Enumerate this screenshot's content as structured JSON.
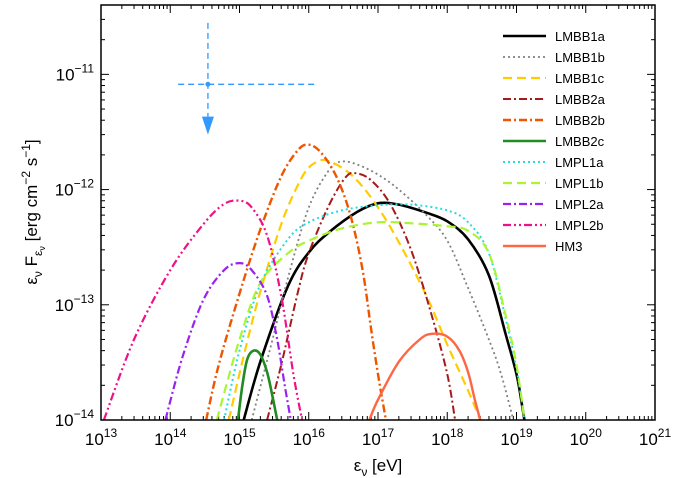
{
  "chart_data": {
    "type": "line",
    "title": "",
    "xscale": "log",
    "yscale": "log",
    "xlim": [
      10000000000000.0,
      1e+21
    ],
    "ylim": [
      1e-14,
      4e-11
    ],
    "xlabel": {
      "main": "ε",
      "sub": "ν",
      "rest": " [eV]"
    },
    "ylabel": {
      "a": "ε",
      "a_sub": "ν",
      "b": " F",
      "b_sub": "ε",
      "b_subsub": "ν",
      "c": " [erg cm",
      "c_sup": "−2",
      "d": " s",
      "d_sup": "−1",
      "e": "]"
    },
    "xticks": [
      {
        "value": 10000000000000.0,
        "base": "10",
        "exp": "13"
      },
      {
        "value": 100000000000000.0,
        "base": "10",
        "exp": "14"
      },
      {
        "value": 1000000000000000.0,
        "base": "10",
        "exp": "15"
      },
      {
        "value": 1e+16,
        "base": "10",
        "exp": "16"
      },
      {
        "value": 1e+17,
        "base": "10",
        "exp": "17"
      },
      {
        "value": 1e+18,
        "base": "10",
        "exp": "18"
      },
      {
        "value": 1e+19,
        "base": "10",
        "exp": "19"
      },
      {
        "value": 1e+20,
        "base": "10",
        "exp": "20"
      },
      {
        "value": 1e+21,
        "base": "10",
        "exp": "21"
      }
    ],
    "yticks": [
      {
        "value": 1e-14,
        "base": "10",
        "exp": "−14"
      },
      {
        "value": 1e-13,
        "base": "10",
        "exp": "−13"
      },
      {
        "value": 1e-12,
        "base": "10",
        "exp": "−12"
      },
      {
        "value": 1e-11,
        "base": "10",
        "exp": "−11"
      }
    ],
    "grid": false,
    "legend_position": "top-right",
    "upper_limit": {
      "color": "#3399ff",
      "x": 350000000000000.0,
      "y": 8.2e-12,
      "x_range": [
        130000000000000.0,
        1.2e+16
      ],
      "y_top": 2.8e-11,
      "arrow_to": 3e-12
    },
    "series": [
      {
        "name": "LMBB1a",
        "color": "#000000",
        "dash": "",
        "width": 2.6,
        "points": [
          [
            1150000000000000.0,
            1e-14
          ],
          [
            2000000000000000.0,
            3.2e-14
          ],
          [
            5000000000000000.0,
            1.45e-13
          ],
          [
            1e+16,
            2.85e-13
          ],
          [
            2e+16,
            4.3e-13
          ],
          [
            5e+16,
            6.4e-13
          ],
          [
            1e+17,
            7.6e-13
          ],
          [
            2e+17,
            7.4e-13
          ],
          [
            5e+17,
            6.3e-13
          ],
          [
            1e+18,
            5.3e-13
          ],
          [
            2e+18,
            3.7e-13
          ],
          [
            4e+18,
            1.8e-13
          ],
          [
            7e+18,
            5.5e-14
          ],
          [
            1e+19,
            2.5e-14
          ],
          [
            1.2e+19,
            1.35e-14
          ],
          [
            1.3e+19,
            1e-14
          ]
        ]
      },
      {
        "name": "LMBB1b",
        "color": "#808080",
        "dash": "2,3",
        "width": 1.8,
        "points": [
          [
            1500000000000000.0,
            1e-14
          ],
          [
            3000000000000000.0,
            5e-14
          ],
          [
            5000000000000000.0,
            1.7e-13
          ],
          [
            1e+16,
            7e-13
          ],
          [
            2e+16,
            1.5e-12
          ],
          [
            3e+16,
            1.75e-12
          ],
          [
            5e+16,
            1.65e-12
          ],
          [
            1e+17,
            1.35e-12
          ],
          [
            2e+17,
            1e-12
          ],
          [
            5e+17,
            6e-13
          ],
          [
            1e+18,
            3.6e-13
          ],
          [
            2e+18,
            1.4e-13
          ],
          [
            4e+18,
            5e-14
          ],
          [
            6e+18,
            2.5e-14
          ],
          [
            9e+18,
            1e-14
          ]
        ]
      },
      {
        "name": "LMBB1c",
        "color": "#ffcc00",
        "dash": "9,5",
        "width": 2.2,
        "points": [
          [
            700000000000000.0,
            1e-14
          ],
          [
            1200000000000000.0,
            4e-14
          ],
          [
            2000000000000000.0,
            1.3e-13
          ],
          [
            4000000000000000.0,
            5e-13
          ],
          [
            7000000000000000.0,
            1.1e-12
          ],
          [
            1e+16,
            1.55e-12
          ],
          [
            1.5e+16,
            1.8e-12
          ],
          [
            2e+16,
            1.75e-12
          ],
          [
            3e+16,
            1.55e-12
          ],
          [
            5e+16,
            1.2e-12
          ],
          [
            1e+17,
            7e-13
          ],
          [
            2e+17,
            3.5e-13
          ],
          [
            5e+17,
            1.2e-13
          ],
          [
            1e+18,
            4.5e-14
          ],
          [
            2e+18,
            1.8e-14
          ],
          [
            3e+18,
            1e-14
          ]
        ]
      },
      {
        "name": "LMBB2a",
        "color": "#a51a1a",
        "dash": "8,3,2,3",
        "width": 2.0,
        "points": [
          [
            2500000000000000.0,
            1e-14
          ],
          [
            4000000000000000.0,
            3e-14
          ],
          [
            7000000000000000.0,
            1.3e-13
          ],
          [
            1e+16,
            2.8e-13
          ],
          [
            2e+16,
            7.5e-13
          ],
          [
            3.5e+16,
            1.3e-12
          ],
          [
            5e+16,
            1.38e-12
          ],
          [
            8e+16,
            1.2e-12
          ],
          [
            1.5e+17,
            7.5e-13
          ],
          [
            3e+17,
            3e-13
          ],
          [
            6e+17,
            8e-14
          ],
          [
            1e+18,
            2.5e-14
          ],
          [
            1.3e+18,
            1e-14
          ]
        ]
      },
      {
        "name": "LMBB2b",
        "color": "#ee5500",
        "dash": "8,3,2,3",
        "width": 2.4,
        "points": [
          [
            330000000000000.0,
            1e-14
          ],
          [
            500000000000000.0,
            3e-14
          ],
          [
            1000000000000000.0,
            1.25e-13
          ],
          [
            2000000000000000.0,
            4.5e-13
          ],
          [
            4000000000000000.0,
            1.3e-12
          ],
          [
            7000000000000000.0,
            2.2e-12
          ],
          [
            1e+16,
            2.45e-12
          ],
          [
            1.5e+16,
            2.1e-12
          ],
          [
            2.5e+16,
            1.3e-12
          ],
          [
            4e+16,
            6e-13
          ],
          [
            6e+16,
            2e-13
          ],
          [
            8e+16,
            6e-14
          ],
          [
            1e+17,
            2.5e-14
          ],
          [
            1.3e+17,
            1e-14
          ]
        ]
      },
      {
        "name": "LMBB2c",
        "color": "#228b22",
        "dash": "",
        "width": 2.6,
        "points": [
          [
            950000000000000.0,
            1e-14
          ],
          [
            1100000000000000.0,
            2e-14
          ],
          [
            1300000000000000.0,
            3.4e-14
          ],
          [
            1600000000000000.0,
            4e-14
          ],
          [
            2000000000000000.0,
            3.7e-14
          ],
          [
            2500000000000000.0,
            2.6e-14
          ],
          [
            3000000000000000.0,
            1.6e-14
          ],
          [
            3500000000000000.0,
            1e-14
          ]
        ]
      },
      {
        "name": "LMPL1a",
        "color": "#22dddd",
        "dash": "2,3",
        "width": 2.0,
        "points": [
          [
            600000000000000.0,
            1e-14
          ],
          [
            1000000000000000.0,
            4e-14
          ],
          [
            2000000000000000.0,
            1.5e-13
          ],
          [
            5000000000000000.0,
            3.7e-13
          ],
          [
            1e+16,
            5.2e-13
          ],
          [
            3e+16,
            6.6e-13
          ],
          [
            1e+17,
            7.3e-13
          ],
          [
            3e+17,
            7.4e-13
          ],
          [
            1e+18,
            6.6e-13
          ],
          [
            2e+18,
            5.2e-13
          ],
          [
            4e+18,
            2.8e-13
          ],
          [
            7e+18,
            7.5e-14
          ],
          [
            1e+19,
            2.8e-14
          ],
          [
            1.3e+19,
            1e-14
          ]
        ]
      },
      {
        "name": "LMPL1b",
        "color": "#aaf530",
        "dash": "9,5",
        "width": 2.2,
        "points": [
          [
            470000000000000.0,
            1e-14
          ],
          [
            1000000000000000.0,
            5e-14
          ],
          [
            2000000000000000.0,
            1.55e-13
          ],
          [
            5000000000000000.0,
            2.8e-13
          ],
          [
            1e+16,
            3.6e-13
          ],
          [
            3e+16,
            4.6e-13
          ],
          [
            1e+17,
            5.2e-13
          ],
          [
            3e+17,
            5.1e-13
          ],
          [
            1e+18,
            4.8e-13
          ],
          [
            2e+18,
            4.4e-13
          ],
          [
            4e+18,
            2.8e-13
          ],
          [
            7e+18,
            8e-14
          ],
          [
            1e+19,
            3e-14
          ],
          [
            1.3e+19,
            1e-14
          ]
        ]
      },
      {
        "name": "LMPL2a",
        "color": "#9922ee",
        "dash": "8,3,2,3",
        "width": 2.2,
        "points": [
          [
            85000000000000.0,
            1e-14
          ],
          [
            150000000000000.0,
            3.5e-14
          ],
          [
            300000000000000.0,
            1.1e-13
          ],
          [
            600000000000000.0,
            2e-13
          ],
          [
            1000000000000000.0,
            2.3e-13
          ],
          [
            1500000000000000.0,
            2e-13
          ],
          [
            2500000000000000.0,
            1.2e-13
          ],
          [
            3500000000000000.0,
            5e-14
          ],
          [
            4500000000000000.0,
            2e-14
          ],
          [
            5500000000000000.0,
            1e-14
          ]
        ]
      },
      {
        "name": "LMPL2b",
        "color": "#ee1188",
        "dash": "8,3,2,3,2,3",
        "width": 2.2,
        "points": [
          [
            11000000000000.0,
            1e-14
          ],
          [
            30000000000000.0,
            5e-14
          ],
          [
            100000000000000.0,
            2e-13
          ],
          [
            300000000000000.0,
            5e-13
          ],
          [
            600000000000000.0,
            7.5e-13
          ],
          [
            1000000000000000.0,
            8e-13
          ],
          [
            1500000000000000.0,
            7e-13
          ],
          [
            2500000000000000.0,
            4e-13
          ],
          [
            4000000000000000.0,
            1.2e-13
          ],
          [
            6000000000000000.0,
            2.5e-14
          ],
          [
            8000000000000000.0,
            1e-14
          ]
        ]
      },
      {
        "name": "HM3",
        "color": "#ff6644",
        "dash": "",
        "width": 2.4,
        "points": [
          [
            7.5e+16,
            1e-14
          ],
          [
            1e+17,
            1.5e-14
          ],
          [
            2e+17,
            3.2e-14
          ],
          [
            4e+17,
            5e-14
          ],
          [
            6e+17,
            5.6e-14
          ],
          [
            1e+18,
            5.3e-14
          ],
          [
            1.5e+18,
            4e-14
          ],
          [
            2e+18,
            2.6e-14
          ],
          [
            2.5e+18,
            1.5e-14
          ],
          [
            3e+18,
            1e-14
          ]
        ]
      }
    ]
  }
}
